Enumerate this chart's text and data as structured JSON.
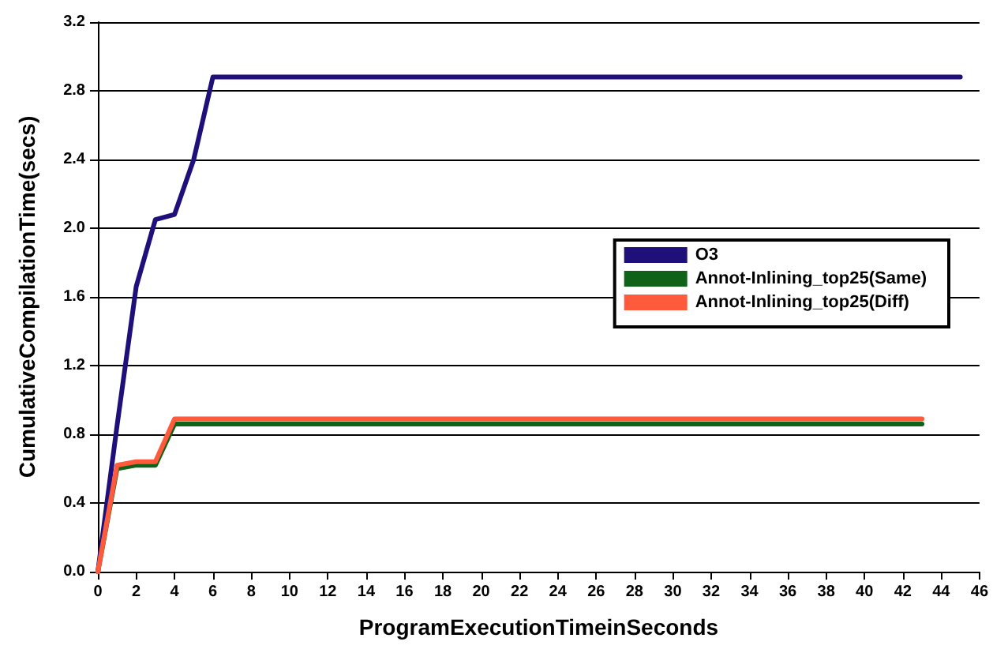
{
  "chart_data": {
    "type": "line",
    "xlabel": "ProgramExecutionTimeinSeconds",
    "ylabel": "CumulativeCompilationTime(secs)",
    "xlim": [
      0,
      46
    ],
    "xticks": [
      0,
      2,
      4,
      6,
      8,
      10,
      12,
      14,
      16,
      18,
      20,
      22,
      24,
      26,
      28,
      30,
      32,
      34,
      36,
      38,
      40,
      42,
      44,
      46
    ],
    "ylim": [
      0,
      3.2
    ],
    "yticks": [
      {
        "value": 0,
        "label": "0.0"
      },
      {
        "value": 0.4,
        "label": "0.4"
      },
      {
        "value": 0.8,
        "label": "0.8"
      },
      {
        "value": 1.2,
        "label": "1.2"
      },
      {
        "value": 1.6,
        "label": "1.6"
      },
      {
        "value": 2.0,
        "label": "2.0"
      },
      {
        "value": 2.4,
        "label": "2.4"
      },
      {
        "value": 2.8,
        "label": "2.8"
      },
      {
        "value": 3.2,
        "label": "3.2"
      }
    ],
    "grid": "y",
    "legend": "right",
    "marker": "none",
    "line_style": "solid",
    "series": [
      {
        "name": "O3",
        "color": "#1f0f7a",
        "x": [
          0,
          1,
          2,
          3,
          4,
          5,
          6,
          45
        ],
        "values": [
          0,
          0.85,
          1.66,
          2.05,
          2.08,
          2.4,
          2.88,
          2.88
        ]
      },
      {
        "name": "Annot-Inlining_top25(Same)",
        "color": "#0f6318",
        "x": [
          0,
          1,
          2,
          3,
          4,
          43
        ],
        "values": [
          0,
          0.6,
          0.62,
          0.62,
          0.86,
          0.86
        ]
      },
      {
        "name": "Annot-Inlining_top25(Diff)",
        "color": "#ff5a3c",
        "x": [
          0,
          1,
          2,
          3,
          4,
          43
        ],
        "values": [
          0,
          0.62,
          0.64,
          0.64,
          0.89,
          0.89
        ]
      }
    ]
  }
}
